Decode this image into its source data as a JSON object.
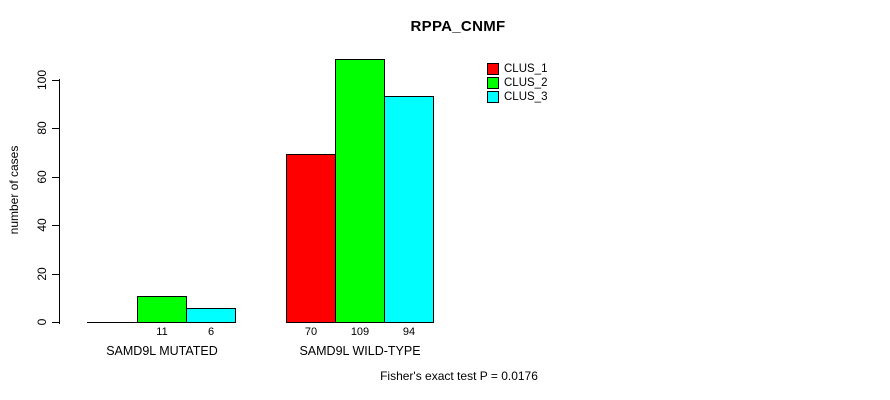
{
  "chart_data": {
    "type": "bar",
    "title": "RPPA_CNMF",
    "xlabel": "",
    "ylabel": "number of cases",
    "ylim": [
      0,
      100
    ],
    "y_ticks": [
      0,
      20,
      40,
      60,
      80,
      100
    ],
    "grid": false,
    "legend_position": "top-right",
    "legend": [
      {
        "label": "CLUS_1",
        "color": "#ff0000"
      },
      {
        "label": "CLUS_2",
        "color": "#00ff00"
      },
      {
        "label": "CLUS_3",
        "color": "#00ffff"
      }
    ],
    "categories": [
      "SAMD9L MUTATED",
      "SAMD9L WILD-TYPE"
    ],
    "series": [
      {
        "name": "CLUS_1",
        "values": [
          0,
          70
        ]
      },
      {
        "name": "CLUS_2",
        "values": [
          11,
          109
        ]
      },
      {
        "name": "CLUS_3",
        "values": [
          6,
          94
        ]
      }
    ],
    "groups": [
      {
        "label": "SAMD9L MUTATED",
        "values": [
          0,
          11,
          6
        ],
        "value_labels": [
          "",
          "11",
          "6"
        ]
      },
      {
        "label": "SAMD9L WILD-TYPE",
        "values": [
          70,
          109,
          94
        ],
        "value_labels": [
          "70",
          "109",
          "94"
        ]
      }
    ],
    "annotation": "Fisher's exact test P = 0.0176"
  }
}
